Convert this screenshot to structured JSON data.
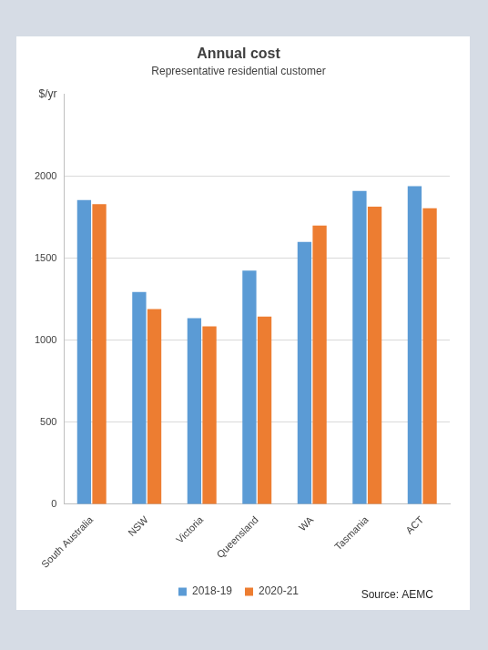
{
  "chart_data": {
    "type": "bar",
    "title": "Annual cost",
    "subtitle": "Representative residential customer",
    "y_label": "$/yr",
    "annotation": "Source: AEMC",
    "categories": [
      "South Australia",
      "NSW",
      "Victoria",
      "Queensland",
      "WA",
      "Tasmania",
      "ACT"
    ],
    "series": [
      {
        "name": "2018-19",
        "color": "#5b9bd5",
        "values": [
          1855,
          1295,
          1135,
          1425,
          1600,
          1910,
          1940
        ]
      },
      {
        "name": "2020-21",
        "color": "#ed7d31",
        "values": [
          1830,
          1190,
          1085,
          1145,
          1700,
          1815,
          1805
        ]
      }
    ],
    "ylim": [
      0,
      2500
    ],
    "yticks": [
      0,
      500,
      1000,
      1500,
      2000
    ],
    "grid": true,
    "legend": "bottom"
  }
}
